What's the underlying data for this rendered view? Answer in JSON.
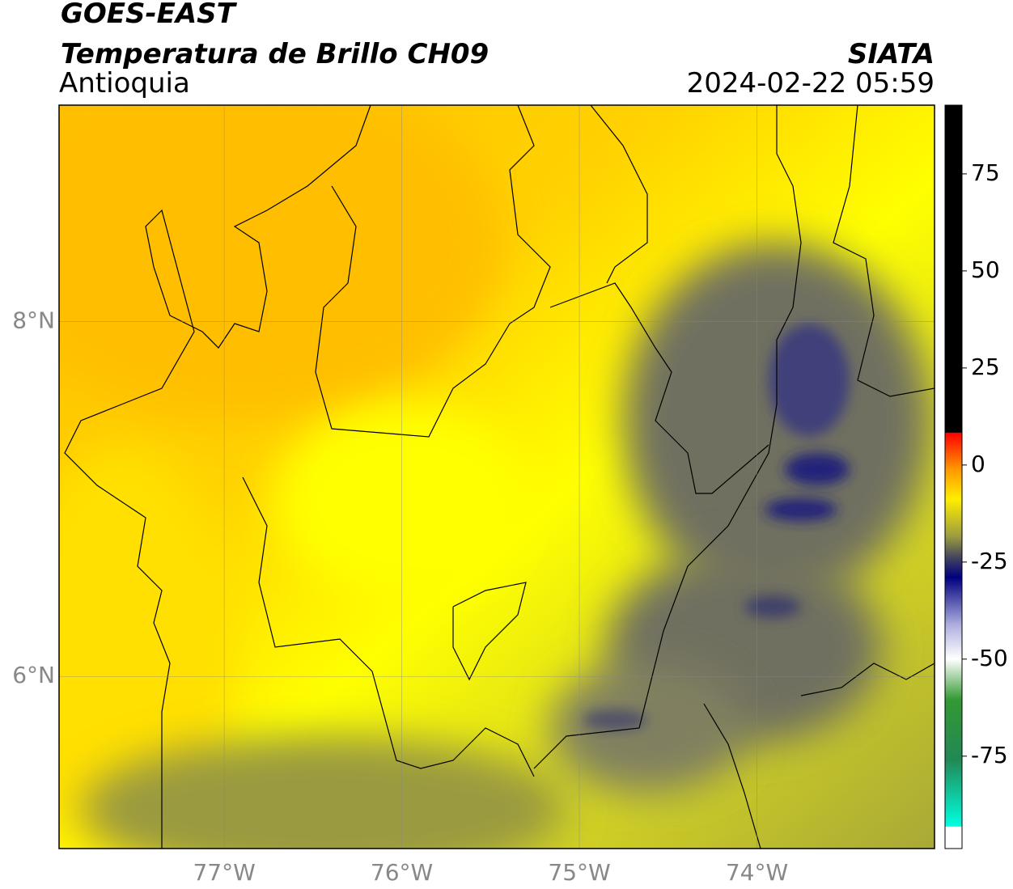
{
  "header": {
    "title": "GOES-EAST",
    "subtitle": "Temperatura de Brillo CH09",
    "region": "Antioquia",
    "source": "SIATA",
    "datetime": "2024-02-22 05:59"
  },
  "map": {
    "xlim": [
      -77.93,
      -73.0
    ],
    "ylim": [
      5.03,
      9.22
    ],
    "xticks": [
      {
        "value": -77,
        "label": "77°W"
      },
      {
        "value": -76,
        "label": "76°W"
      },
      {
        "value": -75,
        "label": "75°W"
      },
      {
        "value": -74,
        "label": "74°W"
      }
    ],
    "yticks": [
      {
        "value": 6,
        "label": "6°N"
      },
      {
        "value": 8,
        "label": "8°N"
      }
    ],
    "grid": true
  },
  "colorbar": {
    "lim": [
      -98.8,
      92.7
    ],
    "ticks": [
      75,
      50,
      25,
      0,
      -25,
      -50,
      -75
    ]
  }
}
